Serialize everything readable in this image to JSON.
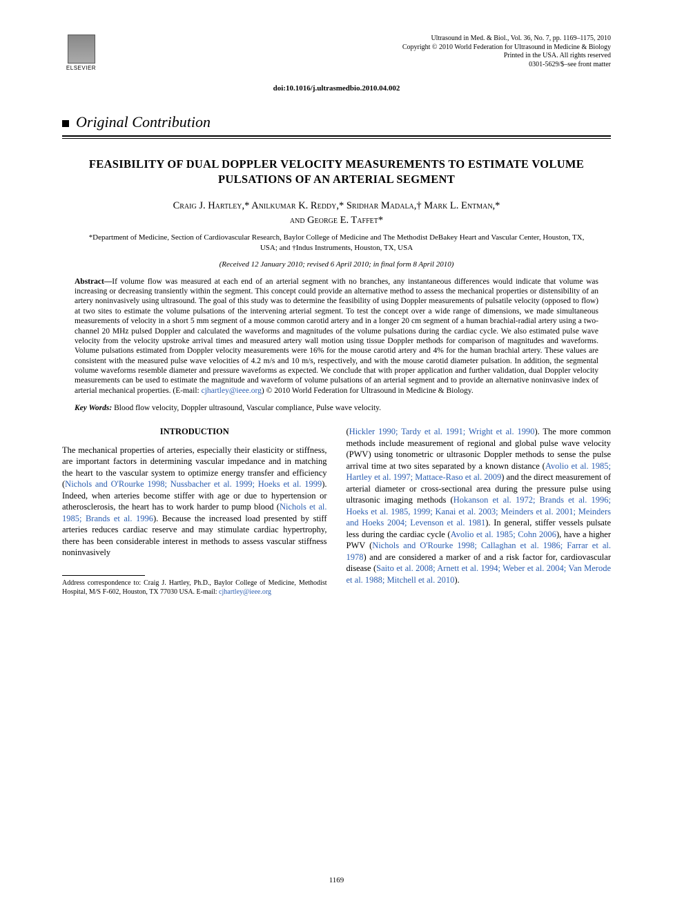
{
  "publisher": {
    "name": "ELSEVIER"
  },
  "journal_meta": {
    "line1": "Ultrasound in Med. & Biol., Vol. 36, No. 7, pp. 1169–1175, 2010",
    "line2": "Copyright © 2010 World Federation for Ultrasound in Medicine & Biology",
    "line3": "Printed in the USA. All rights reserved",
    "line4": "0301-5629/$–see front matter"
  },
  "doi": "doi:10.1016/j.ultrasmedbio.2010.04.002",
  "section_label": "Original Contribution",
  "title": "FEASIBILITY OF DUAL DOPPLER VELOCITY MEASUREMENTS TO ESTIMATE VOLUME PULSATIONS OF AN ARTERIAL SEGMENT",
  "authors_line1": "Craig J. Hartley,* Anilkumar K. Reddy,* Sridhar Madala,† Mark L. Entman,*",
  "authors_line2": "and George E. Taffet*",
  "affiliations": "*Department of Medicine, Section of Cardiovascular Research, Baylor College of Medicine and The Methodist DeBakey Heart and Vascular Center, Houston, TX, USA; and †Indus Instruments, Houston, TX, USA",
  "dates": "(Received 12 January 2010; revised 6 April 2010; in final form 8 April 2010)",
  "abstract": {
    "lead": "Abstract—",
    "text": "If volume flow was measured at each end of an arterial segment with no branches, any instantaneous differences would indicate that volume was increasing or decreasing transiently within the segment. This concept could provide an alternative method to assess the mechanical properties or distensibility of an artery noninvasively using ultrasound. The goal of this study was to determine the feasibility of using Doppler measurements of pulsatile velocity (opposed to flow) at two sites to estimate the volume pulsations of the intervening arterial segment. To test the concept over a wide range of dimensions, we made simultaneous measurements of velocity in a short 5 mm segment of a mouse common carotid artery and in a longer 20 cm segment of a human brachial-radial artery using a two-channel 20 MHz pulsed Doppler and calculated the waveforms and magnitudes of the volume pulsations during the cardiac cycle. We also estimated pulse wave velocity from the velocity upstroke arrival times and measured artery wall motion using tissue Doppler methods for comparison of magnitudes and waveforms. Volume pulsations estimated from Doppler velocity measurements were 16% for the mouse carotid artery and 4% for the human brachial artery. These values are consistent with the measured pulse wave velocities of 4.2 m/s and 10 m/s, respectively, and with the mouse carotid diameter pulsation. In addition, the segmental volume waveforms resemble diameter and pressure waveforms as expected. We conclude that with proper application and further validation, dual Doppler velocity measurements can be used to estimate the magnitude and waveform of volume pulsations of an arterial segment and to provide an alternative noninvasive index of arterial mechanical properties. (E-mail: ",
    "email": "cjhartley@ieee.org",
    "tail": ")   © 2010 World Federation for Ultrasound in Medicine & Biology."
  },
  "keywords": {
    "lead": "Key Words: ",
    "text": "Blood flow velocity, Doppler ultrasound, Vascular compliance, Pulse wave velocity."
  },
  "intro_heading": "INTRODUCTION",
  "col1": {
    "p1a": "The mechanical properties of arteries, especially their elasticity or stiffness, are important factors in determining vascular impedance and in matching the heart to the vascular system to optimize energy transfer and efficiency (",
    "r1": "Nichols and O'Rourke 1998; Nussbacher et al. 1999; Hoeks et al. 1999",
    "p1b": "). Indeed, when arteries become stiffer with age or due to hypertension or atherosclerosis, the heart has to work harder to pump blood (",
    "r2": "Nichols et al. 1985; Brands et al. 1996",
    "p1c": "). Because the increased load presented by stiff arteries reduces cardiac reserve and may stimulate cardiac hypertrophy, there has been considerable interest in methods to assess vascular stiffness noninvasively"
  },
  "col2": {
    "p1a": "(",
    "r1": "Hickler 1990; Tardy et al. 1991; Wright et al. 1990",
    "p1b": "). The more common methods include measurement of regional and global pulse wave velocity (PWV) using tonometric or ultrasonic Doppler methods to sense the pulse arrival time at two sites separated by a known distance (",
    "r2": "Avolio et al. 1985; Hartley et al. 1997; Mattace-Raso et al. 2009",
    "p1c": ") and the direct measurement of arterial diameter or cross-sectional area during the pressure pulse using ultrasonic imaging methods (",
    "r3": "Hokanson et al. 1972; Brands et al. 1996; Hoeks et al. 1985, 1999; Kanai et al. 2003; Meinders et al. 2001; Meinders and Hoeks 2004; Levenson et al. 1981",
    "p1d": "). In general, stiffer vessels pulsate less during the cardiac cycle (",
    "r4": "Avolio et al. 1985; Cohn 2006",
    "p1e": "), have a higher PWV (",
    "r5": "Nichols and O'Rourke 1998; Callaghan et al. 1986; Farrar et al. 1978",
    "p1f": ") and are considered a marker of and a risk factor for, cardiovascular disease (",
    "r6": "Saito et al. 2008; Arnett et al. 1994; Weber et al. 2004; Van Merode et al. 1988; Mitchell et al. 2010",
    "p1g": ")."
  },
  "footnote": {
    "text": "Address correspondence to: Craig J. Hartley, Ph.D., Baylor College of Medicine, Methodist Hospital, M/S F-602, Houston, TX 77030 USA. E-mail: ",
    "email": "cjhartley@ieee.org"
  },
  "page_number": "1169",
  "colors": {
    "link": "#2a5db0",
    "text": "#000000",
    "background": "#ffffff"
  }
}
